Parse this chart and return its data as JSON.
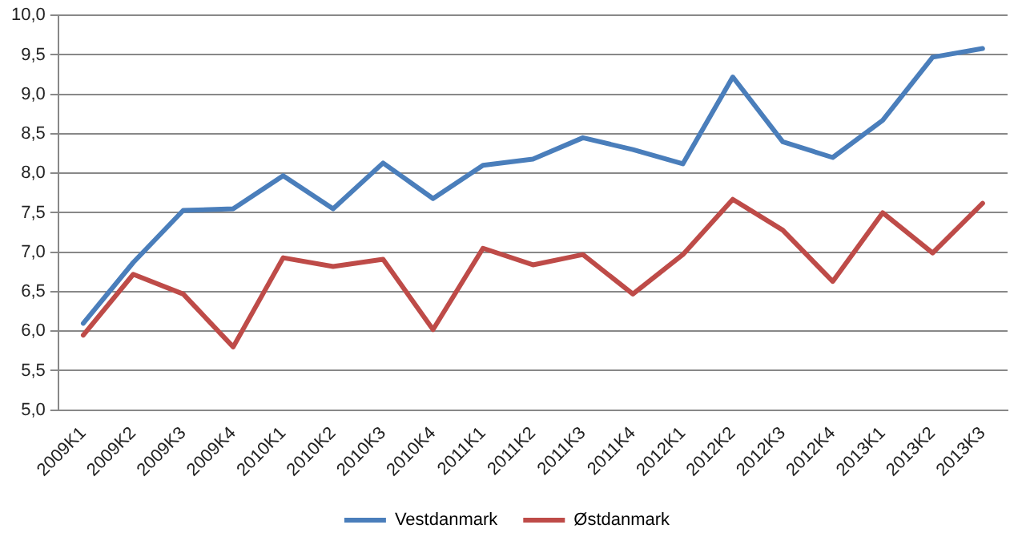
{
  "chart_data": {
    "type": "line",
    "categories": [
      "2009K1",
      "2009K2",
      "2009K3",
      "2009K4",
      "2010K1",
      "2010K2",
      "2010K3",
      "2010K4",
      "2011K1",
      "2011K2",
      "2011K3",
      "2011K4",
      "2012K1",
      "2012K2",
      "2012K3",
      "2012K4",
      "2013K1",
      "2013K2",
      "2013K3"
    ],
    "series": [
      {
        "name": "Vestdanmark",
        "color": "#4a7ebb",
        "values": [
          6.1,
          6.87,
          7.53,
          7.55,
          7.97,
          7.55,
          8.13,
          7.68,
          8.1,
          8.18,
          8.45,
          8.3,
          8.12,
          9.22,
          8.4,
          8.2,
          8.67,
          9.47,
          9.58
        ]
      },
      {
        "name": "Østdanmark",
        "color": "#be4b48",
        "values": [
          5.95,
          6.72,
          6.47,
          5.8,
          6.93,
          6.82,
          6.91,
          6.02,
          7.05,
          6.84,
          6.97,
          6.47,
          6.97,
          7.67,
          7.28,
          6.63,
          7.5,
          6.99,
          7.62
        ]
      }
    ],
    "ylim": [
      5,
      10
    ],
    "yticks": [
      {
        "value": 5,
        "label": "5,0"
      },
      {
        "value": 5.5,
        "label": "5,5"
      },
      {
        "value": 6,
        "label": "6,0"
      },
      {
        "value": 6.5,
        "label": "6,5"
      },
      {
        "value": 7,
        "label": "7,0"
      },
      {
        "value": 7.5,
        "label": "7,5"
      },
      {
        "value": 8,
        "label": "8,0"
      },
      {
        "value": 8.5,
        "label": "8,5"
      },
      {
        "value": 9,
        "label": "9,0"
      },
      {
        "value": 9.5,
        "label": "9,5"
      },
      {
        "value": 10,
        "label": "10,0"
      }
    ],
    "grid": "y",
    "legend": "bottom",
    "marker": "none",
    "line_style": "solid"
  }
}
